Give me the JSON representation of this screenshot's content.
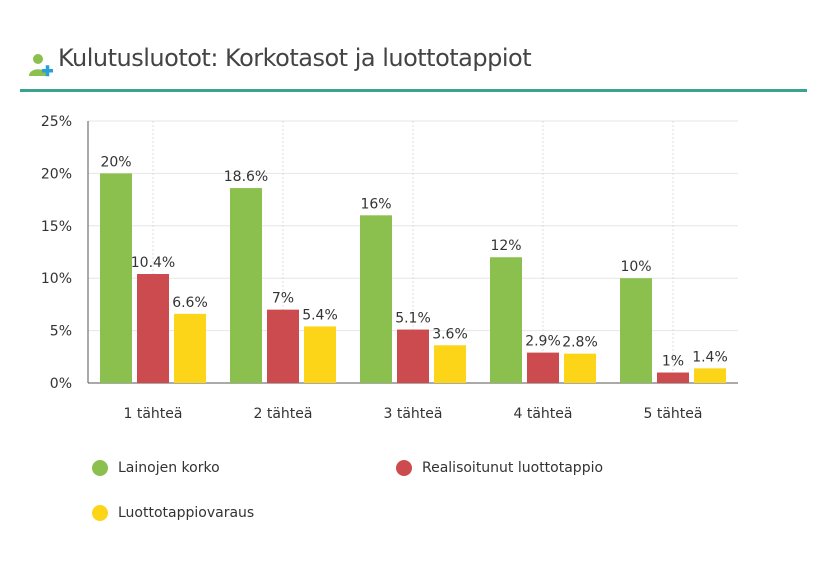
{
  "header": {
    "title": "Kulutusluotot: Korkotasot ja luottotappiot",
    "icon": "user-plus-icon"
  },
  "chart_data": {
    "type": "bar",
    "categories": [
      "1 tähteä",
      "2 tähteä",
      "3 tähteä",
      "4 tähteä",
      "5 tähteä"
    ],
    "series": [
      {
        "name": "Lainojen korko",
        "color": "#8bc04e",
        "values": [
          20,
          18.6,
          16,
          12,
          10
        ],
        "labels": [
          "20%",
          "18.6%",
          "16%",
          "12%",
          "10%"
        ]
      },
      {
        "name": "Realisoitunut luottotappio",
        "color": "#cc4b4e",
        "values": [
          10.4,
          7,
          5.1,
          2.9,
          1
        ],
        "labels": [
          "10.4%",
          "7%",
          "5.1%",
          "2.9%",
          "1%"
        ]
      },
      {
        "name": "Luottotappiovaraus",
        "color": "#fcd519",
        "values": [
          6.6,
          5.4,
          3.6,
          2.8,
          1.4
        ],
        "labels": [
          "6.6%",
          "5.4%",
          "3.6%",
          "2.8%",
          "1.4%"
        ]
      }
    ],
    "yticks": [
      "0%",
      "5%",
      "10%",
      "15%",
      "20%",
      "25%"
    ],
    "ylim": [
      0,
      25
    ],
    "title": "Kulutusluotot: Korkotasot ja luottotappiot",
    "xlabel": "",
    "ylabel": "",
    "grid": true,
    "legend_position": "bottom"
  }
}
